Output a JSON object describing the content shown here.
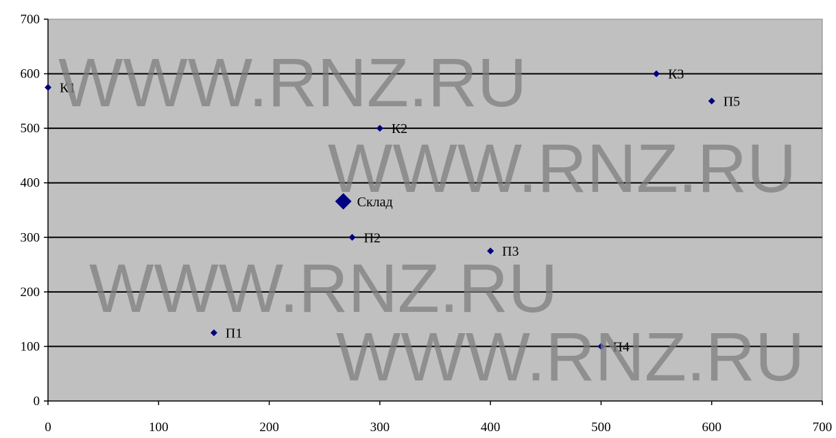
{
  "chart_data": {
    "type": "scatter",
    "title": "",
    "xlabel": "",
    "ylabel": "",
    "xlim": [
      0,
      700
    ],
    "ylim": [
      0,
      700
    ],
    "x_ticks": [
      0,
      100,
      200,
      300,
      400,
      500,
      600,
      700
    ],
    "y_ticks": [
      0,
      100,
      200,
      300,
      400,
      500,
      600,
      700
    ],
    "horizontal_grid": true,
    "vertical_grid": false,
    "plot_background": "#c0c0c0",
    "grid_color": "#000000",
    "marker_color": "#000080",
    "points": [
      {
        "label": "К1",
        "x": 0,
        "y": 575
      },
      {
        "label": "К2",
        "x": 300,
        "y": 500
      },
      {
        "label": "К3",
        "x": 550,
        "y": 600
      },
      {
        "label": "П5",
        "x": 600,
        "y": 550
      },
      {
        "label": "Склад",
        "x": 267,
        "y": 366,
        "highlight": true
      },
      {
        "label": "П2",
        "x": 275,
        "y": 300
      },
      {
        "label": "П3",
        "x": 400,
        "y": 275
      },
      {
        "label": "П1",
        "x": 150,
        "y": 125
      },
      {
        "label": "П4",
        "x": 500,
        "y": 100
      }
    ]
  },
  "watermark": "WWW.RNZ.RU"
}
